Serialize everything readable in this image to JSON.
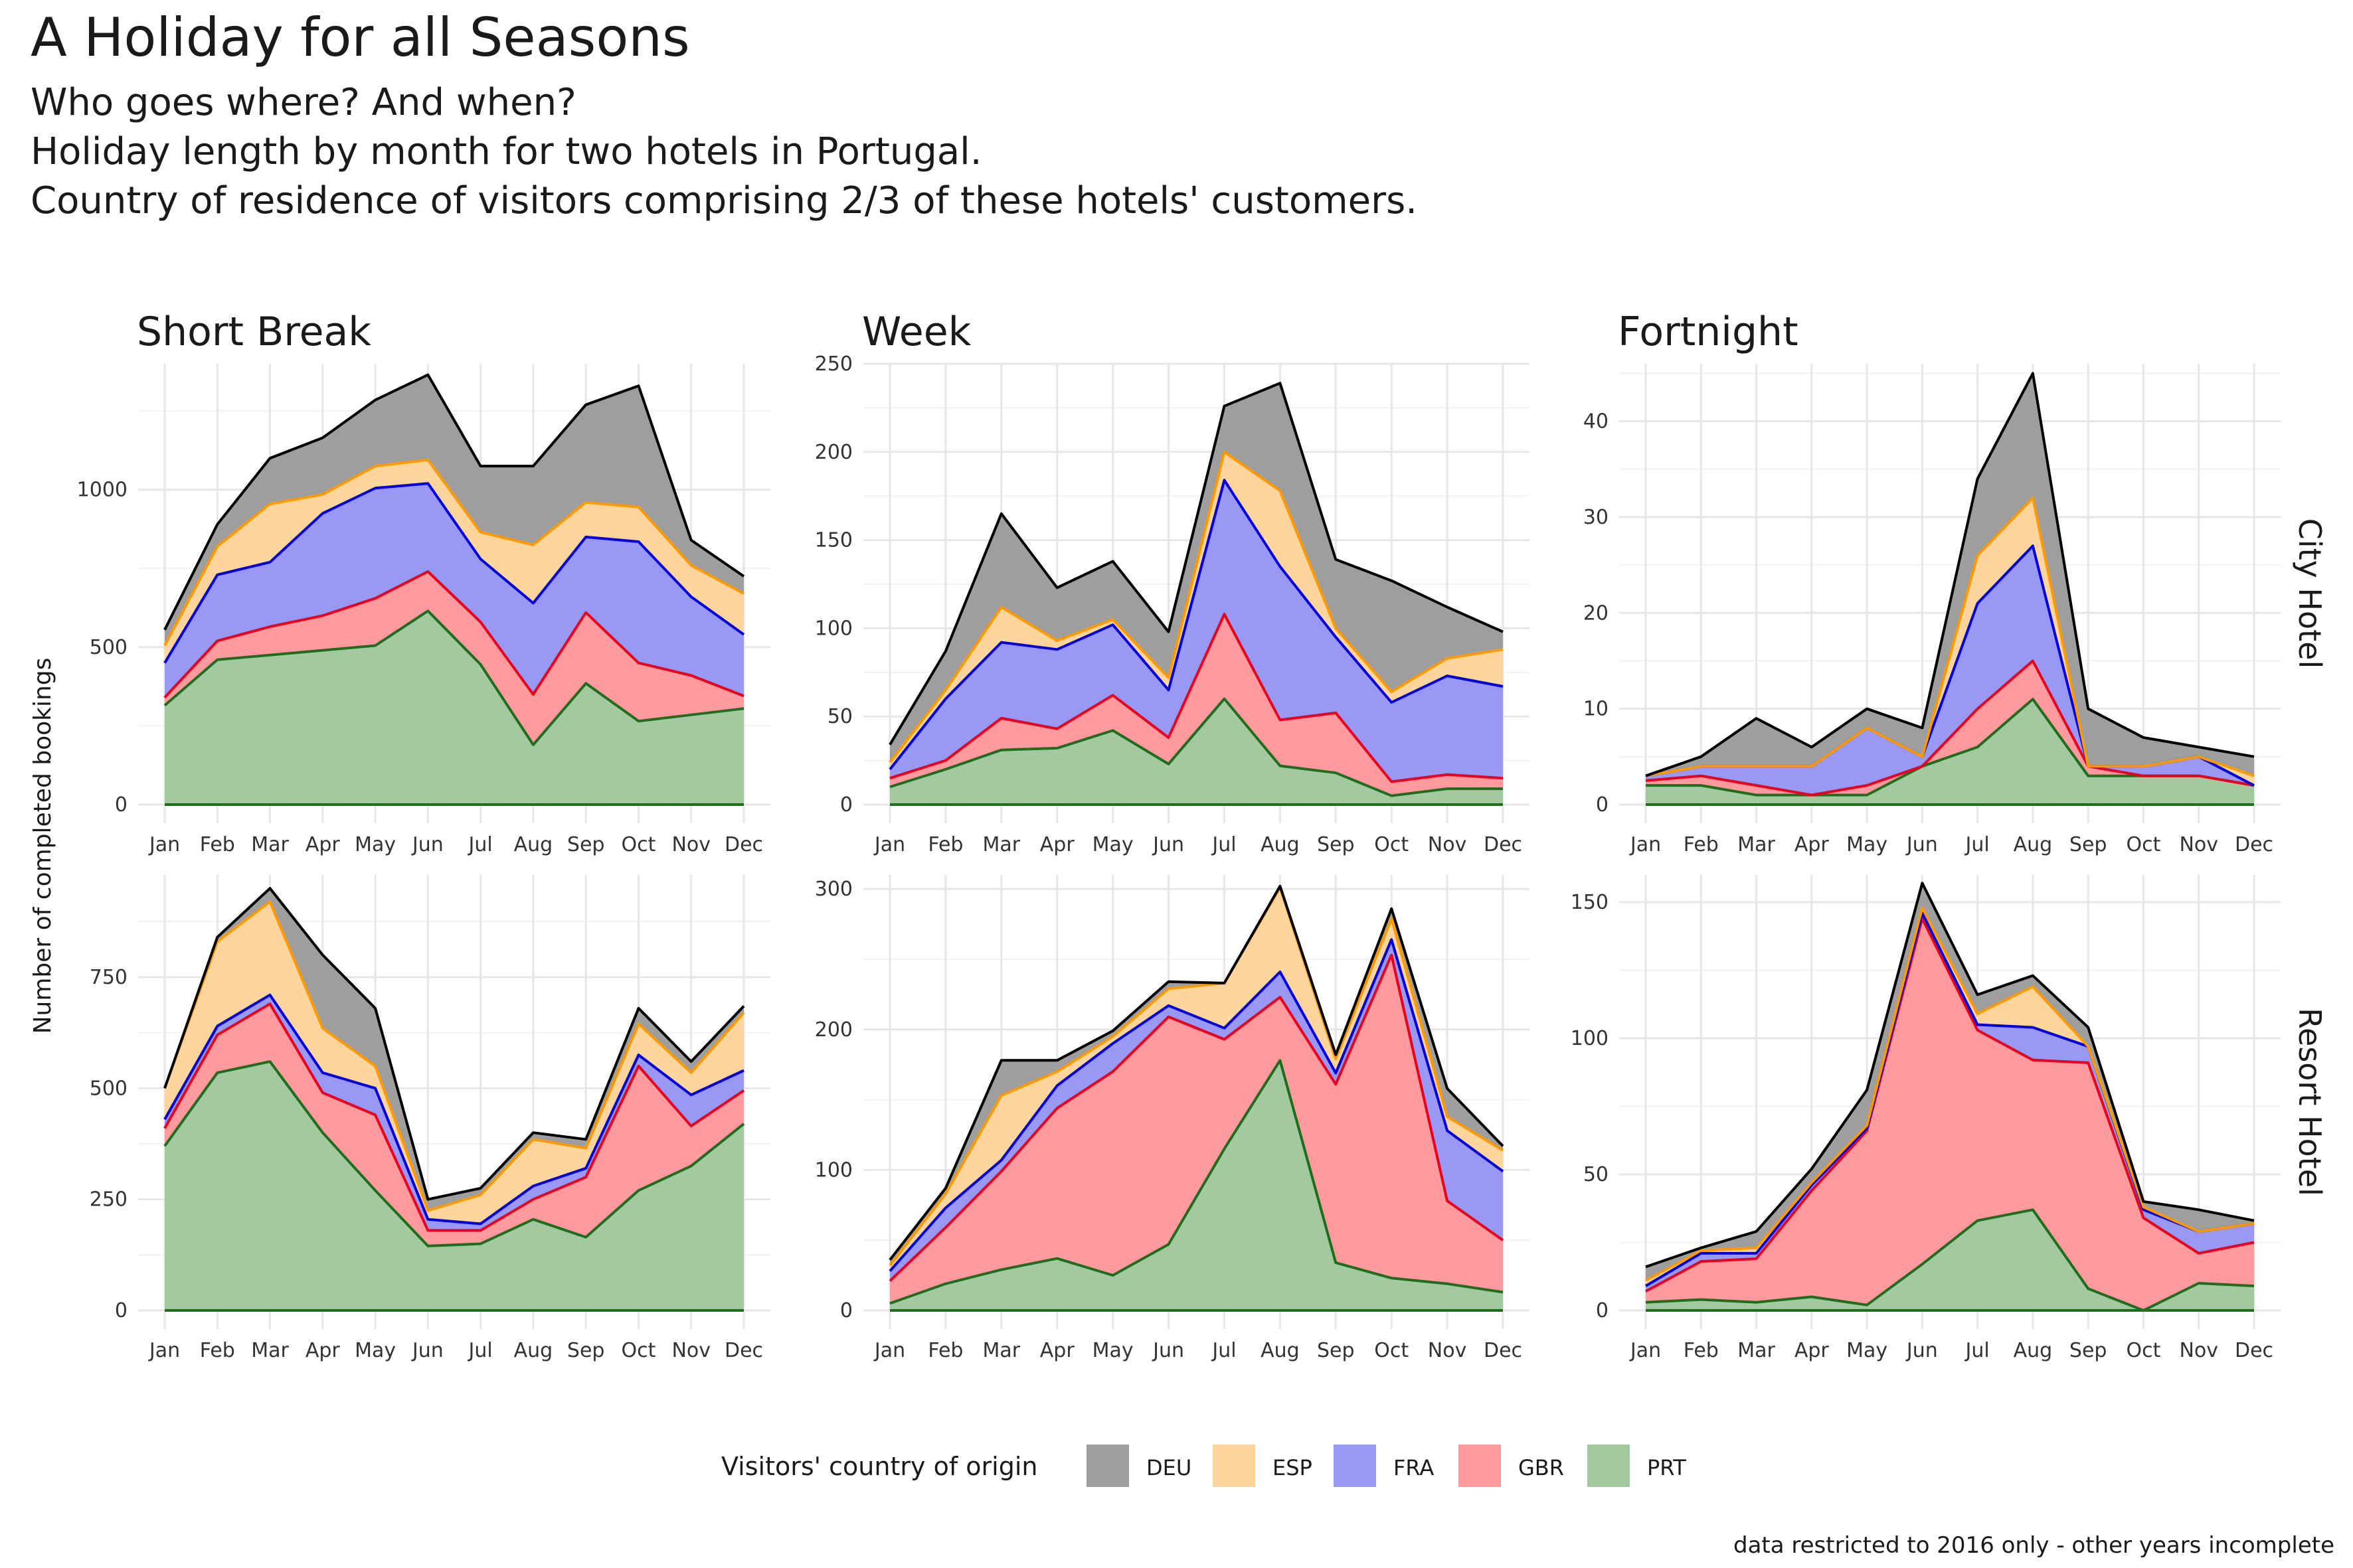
{
  "title": "A Holiday for all Seasons",
  "subtitle": [
    "Who goes where? And when?",
    "Holiday length by month for two hotels in Portugal.",
    "Country of residence of visitors comprising 2/3 of these hotels' customers."
  ],
  "caption": "data restricted to 2016 only - other years incomplete",
  "chart_data": {
    "type": "area",
    "stacked": true,
    "ylabel": "Number of completed bookings",
    "categories": [
      "Jan",
      "Feb",
      "Mar",
      "Apr",
      "May",
      "Jun",
      "Jul",
      "Aug",
      "Sep",
      "Oct",
      "Nov",
      "Dec"
    ],
    "legend": {
      "title": "Visitors' country of origin",
      "position": "bottom",
      "items": [
        {
          "name": "DEU",
          "fill": "#9e9e9e",
          "line": "#000000"
        },
        {
          "name": "ESP",
          "fill": "#ffd59e",
          "line": "#ff9900"
        },
        {
          "name": "FRA",
          "fill": "#9999f5",
          "line": "#0000dd"
        },
        {
          "name": "GBR",
          "fill": "#ff9a9e",
          "line": "#e8001c"
        },
        {
          "name": "PRT",
          "fill": "#a3c9a0",
          "line": "#1e6e1e"
        }
      ]
    },
    "columns": [
      "Short Break",
      "Week",
      "Fortnight"
    ],
    "rows": [
      "City Hotel",
      "Resort Hotel"
    ],
    "grid": true,
    "panels": [
      {
        "row": "City Hotel",
        "col": "Short Break",
        "ylim": [
          0,
          1400
        ],
        "yticks": [
          0,
          500,
          1000
        ],
        "series": [
          {
            "name": "PRT",
            "values": [
              315,
              460,
              475,
              490,
              505,
              615,
              445,
              190,
              385,
              265,
              285,
              305
            ]
          },
          {
            "name": "GBR",
            "values": [
              25,
              60,
              90,
              110,
              150,
              125,
              135,
              160,
              225,
              185,
              125,
              40
            ]
          },
          {
            "name": "FRA",
            "values": [
              110,
              210,
              205,
              325,
              350,
              280,
              200,
              290,
              240,
              385,
              250,
              195
            ]
          },
          {
            "name": "ESP",
            "values": [
              55,
              90,
              185,
              60,
              70,
              75,
              85,
              185,
              110,
              110,
              100,
              130
            ]
          },
          {
            "name": "DEU",
            "values": [
              50,
              70,
              145,
              180,
              210,
              270,
              210,
              250,
              310,
              385,
              80,
              55
            ]
          }
        ]
      },
      {
        "row": "City Hotel",
        "col": "Week",
        "ylim": [
          0,
          250
        ],
        "yticks": [
          0,
          50,
          100,
          150,
          200,
          250
        ],
        "series": [
          {
            "name": "PRT",
            "values": [
              10,
              20,
              31,
              32,
              42,
              23,
              60,
              22,
              18,
              5,
              9,
              9
            ]
          },
          {
            "name": "GBR",
            "values": [
              5,
              5,
              18,
              11,
              20,
              15,
              48,
              26,
              34,
              8,
              8,
              6
            ]
          },
          {
            "name": "FRA",
            "values": [
              5,
              35,
              43,
              45,
              40,
              27,
              76,
              87,
              43,
              45,
              56,
              52
            ]
          },
          {
            "name": "ESP",
            "values": [
              4,
              5,
              20,
              5,
              3,
              7,
              16,
              43,
              5,
              6,
              10,
              21
            ]
          },
          {
            "name": "DEU",
            "values": [
              10,
              22,
              53,
              30,
              33,
              26,
              26,
              61,
              39,
              63,
              29,
              10
            ]
          }
        ]
      },
      {
        "row": "City Hotel",
        "col": "Fortnight",
        "ylim": [
          0,
          46
        ],
        "yticks": [
          0,
          10,
          20,
          30,
          40
        ],
        "series": [
          {
            "name": "PRT",
            "values": [
              2,
              2,
              1,
              1,
              1,
              4,
              6,
              11,
              3,
              3,
              3,
              2
            ]
          },
          {
            "name": "GBR",
            "values": [
              0.5,
              1,
              1,
              0,
              1,
              0,
              4,
              4,
              1,
              0,
              0,
              0
            ]
          },
          {
            "name": "FRA",
            "values": [
              0.5,
              1,
              2,
              3,
              6,
              1,
              11,
              12,
              0,
              1,
              2,
              0
            ]
          },
          {
            "name": "ESP",
            "values": [
              0,
              0,
              0,
              0,
              0,
              0,
              5,
              5,
              0,
              0,
              0,
              1
            ]
          },
          {
            "name": "DEU",
            "values": [
              0,
              1,
              5,
              2,
              2,
              3,
              8,
              13,
              6,
              3,
              1,
              2
            ]
          }
        ]
      },
      {
        "row": "Resort Hotel",
        "col": "Short Break",
        "ylim": [
          0,
          980
        ],
        "yticks": [
          0,
          250,
          500,
          750
        ],
        "series": [
          {
            "name": "PRT",
            "values": [
              370,
              535,
              560,
              400,
              270,
              145,
              150,
              205,
              165,
              270,
              325,
              420
            ]
          },
          {
            "name": "GBR",
            "values": [
              40,
              85,
              130,
              90,
              170,
              35,
              30,
              45,
              135,
              280,
              90,
              75
            ]
          },
          {
            "name": "FRA",
            "values": [
              20,
              20,
              20,
              45,
              60,
              25,
              15,
              30,
              20,
              25,
              70,
              45
            ]
          },
          {
            "name": "ESP",
            "values": [
              70,
              190,
              210,
              100,
              50,
              20,
              65,
              105,
              45,
              70,
              50,
              130
            ]
          },
          {
            "name": "DEU",
            "values": [
              0,
              10,
              30,
              165,
              130,
              25,
              15,
              15,
              20,
              35,
              25,
              15
            ]
          }
        ]
      },
      {
        "row": "Resort Hotel",
        "col": "Week",
        "ylim": [
          0,
          310
        ],
        "yticks": [
          0,
          100,
          200,
          300
        ],
        "series": [
          {
            "name": "PRT",
            "values": [
              5,
              19,
              29,
              37,
              25,
              47,
              115,
              178,
              34,
              23,
              19,
              13
            ]
          },
          {
            "name": "GBR",
            "values": [
              16,
              40,
              70,
              107,
              145,
              162,
              78,
              45,
              127,
              230,
              59,
              37
            ]
          },
          {
            "name": "FRA",
            "values": [
              7,
              14,
              8,
              16,
              20,
              8,
              8,
              18,
              8,
              11,
              50,
              49
            ]
          },
          {
            "name": "ESP",
            "values": [
              4,
              10,
              46,
              10,
              5,
              12,
              32,
              60,
              10,
              15,
              10,
              15
            ]
          },
          {
            "name": "DEU",
            "values": [
              4,
              4,
              25,
              8,
              4,
              5,
              0,
              1,
              3,
              7,
              20,
              3
            ]
          }
        ]
      },
      {
        "row": "Resort Hotel",
        "col": "Fortnight",
        "ylim": [
          0,
          160
        ],
        "yticks": [
          0,
          50,
          100,
          150
        ],
        "series": [
          {
            "name": "PRT",
            "values": [
              3,
              4,
              3,
              5,
              2,
              17,
              33,
              37,
              8,
              0,
              10,
              9
            ]
          },
          {
            "name": "GBR",
            "values": [
              4,
              14,
              16,
              39,
              64,
              127,
              70,
              55,
              83,
              34,
              11,
              16
            ]
          },
          {
            "name": "FRA",
            "values": [
              2,
              3,
              2,
              2,
              1,
              2,
              2,
              12,
              6,
              3,
              8,
              7
            ]
          },
          {
            "name": "ESP",
            "values": [
              2,
              1,
              2,
              1,
              1,
              2,
              4,
              15,
              0,
              1,
              0,
              0
            ]
          },
          {
            "name": "DEU",
            "values": [
              5,
              1,
              6,
              5,
              13,
              9,
              7,
              4,
              7,
              2,
              8,
              1
            ]
          }
        ]
      }
    ]
  }
}
